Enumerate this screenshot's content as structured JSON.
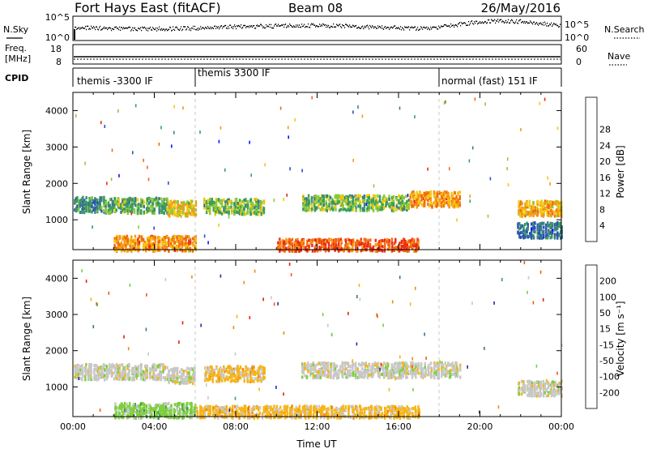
{
  "header": {
    "title": "Fort Hays East (fitACF)",
    "beam": "Beam 08",
    "date": "26/May/2016"
  },
  "status_panels": {
    "noise": {
      "left_label": "N.Sky",
      "right_label": "N.Search",
      "left_ticks": [
        "10^5",
        "10^0"
      ],
      "right_ticks": [
        "10^5",
        "10^0"
      ]
    },
    "freq": {
      "left_label_1": "Freq.",
      "left_label_2": "[MHz]",
      "right_label": "Nave",
      "left_ticks": [
        "18",
        "8"
      ],
      "right_ticks": [
        "60",
        "0"
      ]
    },
    "cpid": {
      "label": "CPID",
      "segments": [
        {
          "label": "themis -3300 IF",
          "start_hour": 0,
          "end_hour": 6
        },
        {
          "label": "themis 3300 IF",
          "start_hour": 6,
          "end_hour": 18
        },
        {
          "label": "normal (fast) 151 IF",
          "start_hour": 18,
          "end_hour": 24
        }
      ]
    }
  },
  "chart_data": [
    {
      "type": "heatmap",
      "title": "",
      "ylabel": "Slant Range [km]",
      "xlabel": "",
      "xlim": [
        0,
        24
      ],
      "ylim": [
        180,
        4500
      ],
      "yticks": [
        "1000",
        "2000",
        "3000",
        "4000"
      ],
      "colorbar": {
        "label": "Power [dB]",
        "ticks": [
          "4",
          "8",
          "12",
          "16",
          "20",
          "24",
          "28"
        ],
        "colors": [
          "#0018ff",
          "#2c4fbd",
          "#3d7e84",
          "#3aa05a",
          "#8bc93a",
          "#f4c80c",
          "#f79a14",
          "#f26a10",
          "#ee2a14"
        ],
        "range": [
          0,
          30
        ]
      },
      "bands": [
        {
          "start_hour": 0.0,
          "end_hour": 1.5,
          "range_km": 1450,
          "value": 20
        },
        {
          "start_hour": 1.5,
          "end_hour": 4.6,
          "range_km": 1430,
          "value": 18
        },
        {
          "start_hour": 4.6,
          "end_hour": 6.0,
          "range_km": 1350,
          "value": 12
        },
        {
          "start_hour": 6.4,
          "end_hour": 9.4,
          "range_km": 1400,
          "value": 16
        },
        {
          "start_hour": 11.2,
          "end_hour": 16.5,
          "range_km": 1500,
          "value": 16
        },
        {
          "start_hour": 16.5,
          "end_hour": 19.0,
          "range_km": 1600,
          "value": 8
        },
        {
          "start_hour": 21.8,
          "end_hour": 24.0,
          "range_km": 750,
          "value": 22
        },
        {
          "start_hour": 21.8,
          "end_hour": 24.0,
          "range_km": 1350,
          "value": 10
        },
        {
          "start_hour": 2.0,
          "end_hour": 6.0,
          "range_km": 380,
          "value": 8
        },
        {
          "start_hour": 10.0,
          "end_hour": 17.0,
          "range_km": 300,
          "value": 4
        }
      ]
    },
    {
      "type": "heatmap",
      "title": "",
      "ylabel": "Slant Range [km]",
      "xlabel": "Time UT",
      "xlim": [
        0,
        24
      ],
      "ylim": [
        180,
        4500
      ],
      "yticks": [
        "1000",
        "2000",
        "3000",
        "4000"
      ],
      "xticks": [
        "00:00",
        "04:00",
        "08:00",
        "12:00",
        "16:00",
        "20:00",
        "00:00"
      ],
      "colorbar": {
        "label": "Velocity [m s⁻¹]",
        "ticks": [
          "200",
          "100",
          "50",
          "15",
          "-15",
          "-50",
          "-100",
          "-200"
        ],
        "colors": [
          "#1a2cb8",
          "#3d6e8e",
          "#3e9a52",
          "#7cd03a",
          "#c8c8c8",
          "#f7b414",
          "#f38a0c",
          "#f25c0c",
          "#e81c10"
        ],
        "range": [
          -200,
          200
        ]
      },
      "bands": [
        {
          "start_hour": 0.0,
          "end_hour": 4.6,
          "range_km": 1450,
          "value": 0
        },
        {
          "start_hour": 4.6,
          "end_hour": 6.0,
          "range_km": 1350,
          "value": 0
        },
        {
          "start_hour": 6.4,
          "end_hour": 9.4,
          "range_km": 1400,
          "value": -40
        },
        {
          "start_hour": 11.2,
          "end_hour": 19.0,
          "range_km": 1500,
          "value": 0
        },
        {
          "start_hour": 21.8,
          "end_hour": 24.0,
          "range_km": 1000,
          "value": 0
        },
        {
          "start_hour": 2.0,
          "end_hour": 6.0,
          "range_km": 380,
          "value": 40
        },
        {
          "start_hour": 6.0,
          "end_hour": 17.0,
          "range_km": 300,
          "value": -40
        }
      ]
    }
  ]
}
